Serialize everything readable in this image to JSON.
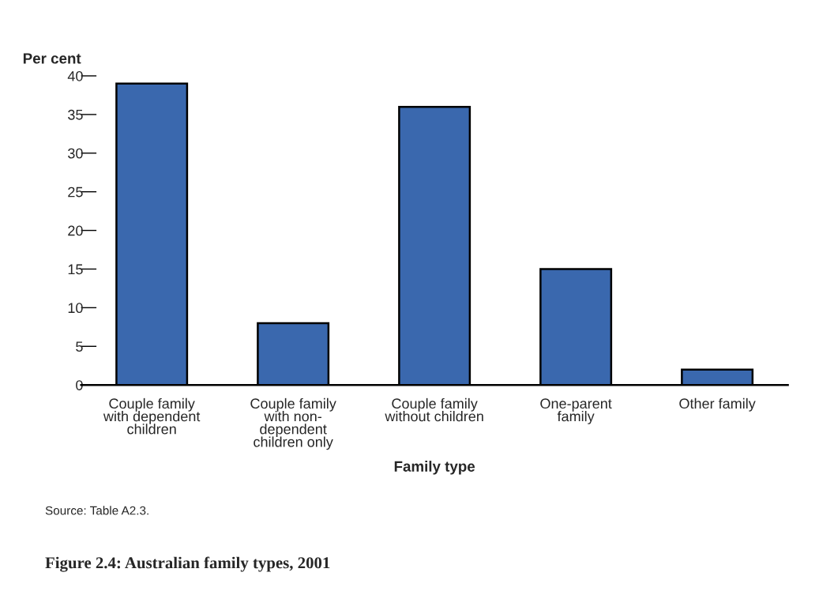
{
  "chart_data": {
    "type": "bar",
    "title": "Figure 2.4: Australian family types, 2001",
    "xlabel": "Family type",
    "ylabel": "Per cent",
    "categories": [
      "Couple family\nwith dependent\nchildren",
      "Couple family\nwith non-\ndependent\nchildren only",
      "Couple family\nwithout children",
      "One-parent\nfamily",
      "Other family"
    ],
    "values": [
      39,
      8,
      36,
      15,
      2
    ],
    "color": "#3a68ae",
    "ylim": [
      0,
      40
    ],
    "yticks": [
      0,
      5,
      10,
      15,
      20,
      25,
      30,
      35,
      40
    ],
    "grid": false,
    "legend": false,
    "annotations": [
      "Source: Table A2.3."
    ]
  }
}
